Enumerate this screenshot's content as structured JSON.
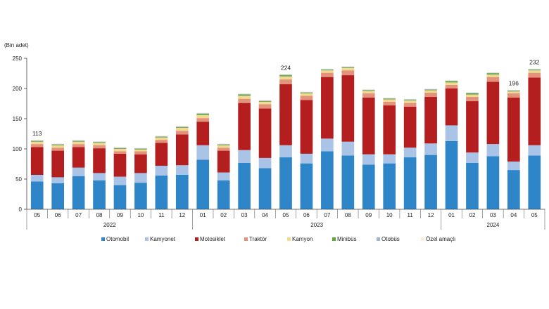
{
  "chart_data": {
    "type": "bar",
    "stacked": true,
    "unit_label": "(Bin adet)",
    "ylim": [
      0,
      250
    ],
    "yticks": [
      0,
      50,
      100,
      150,
      200,
      250
    ],
    "grid": false,
    "legend_position": "bottom",
    "months": [
      "05",
      "06",
      "07",
      "08",
      "09",
      "10",
      "11",
      "12",
      "01",
      "02",
      "03",
      "04",
      "05",
      "06",
      "07",
      "08",
      "09",
      "10",
      "11",
      "12",
      "01",
      "02",
      "03",
      "04",
      "05"
    ],
    "year_groups": [
      {
        "label": "2022",
        "count": 8
      },
      {
        "label": "2023",
        "count": 12
      },
      {
        "label": "2024",
        "count": 5
      }
    ],
    "annotations": [
      {
        "index": 0,
        "text": "113"
      },
      {
        "index": 12,
        "text": "224"
      },
      {
        "index": 23,
        "text": "196"
      },
      {
        "index": 24,
        "text": "232"
      }
    ],
    "series": [
      {
        "name": "Otomobil",
        "color": "#2e86c8",
        "values": [
          46,
          43,
          55,
          48,
          40,
          44,
          56,
          57,
          82,
          48,
          77,
          68,
          86,
          76,
          96,
          89,
          74,
          76,
          86,
          90,
          113,
          77,
          88,
          65,
          89
        ]
      },
      {
        "name": "Kamyonet",
        "color": "#a9c4e6",
        "values": [
          11,
          10,
          14,
          12,
          14,
          16,
          16,
          16,
          24,
          13,
          21,
          17,
          20,
          16,
          21,
          23,
          17,
          15,
          16,
          19,
          26,
          17,
          20,
          14,
          17
        ]
      },
      {
        "name": "Motosiklet",
        "color": "#b41e1e",
        "values": [
          46,
          44,
          34,
          41,
          38,
          31,
          38,
          51,
          39,
          36,
          78,
          82,
          101,
          89,
          102,
          110,
          94,
          81,
          68,
          77,
          61,
          85,
          103,
          106,
          112
        ]
      },
      {
        "name": "Traktör",
        "color": "#e3937b",
        "values": [
          5,
          5,
          5,
          5,
          4,
          5,
          5,
          6,
          6,
          5,
          7,
          7,
          8,
          7,
          7,
          8,
          7,
          6,
          6,
          7,
          6,
          7,
          8,
          7,
          8
        ]
      },
      {
        "name": "Kamyon",
        "color": "#f3d88f",
        "values": [
          4,
          4,
          4,
          4,
          4,
          3,
          4,
          5,
          5,
          4,
          5,
          4,
          5,
          4,
          4,
          4,
          4,
          4,
          4,
          4,
          4,
          4,
          4,
          3,
          4
        ]
      },
      {
        "name": "Minibüs",
        "color": "#5fa540",
        "values": [
          1,
          1,
          1,
          1,
          1,
          1,
          1,
          1,
          2,
          1,
          2,
          1,
          2,
          1,
          1,
          1,
          1,
          1,
          1,
          1,
          2,
          2,
          2,
          1,
          1
        ]
      },
      {
        "name": "Otobüs",
        "color": "#9db5d3",
        "values": [
          1,
          1,
          1,
          1,
          1,
          1,
          1,
          1,
          1,
          1,
          1,
          1,
          1,
          1,
          1,
          1,
          1,
          1,
          1,
          1,
          1,
          1,
          1,
          1,
          1
        ]
      },
      {
        "name": "Özel amaçlı",
        "color": "#fbeed5",
        "values": [
          1,
          1,
          1,
          1,
          1,
          1,
          1,
          1,
          1,
          1,
          1,
          1,
          1,
          1,
          1,
          1,
          1,
          1,
          1,
          1,
          1,
          1,
          1,
          1,
          1
        ]
      }
    ]
  }
}
